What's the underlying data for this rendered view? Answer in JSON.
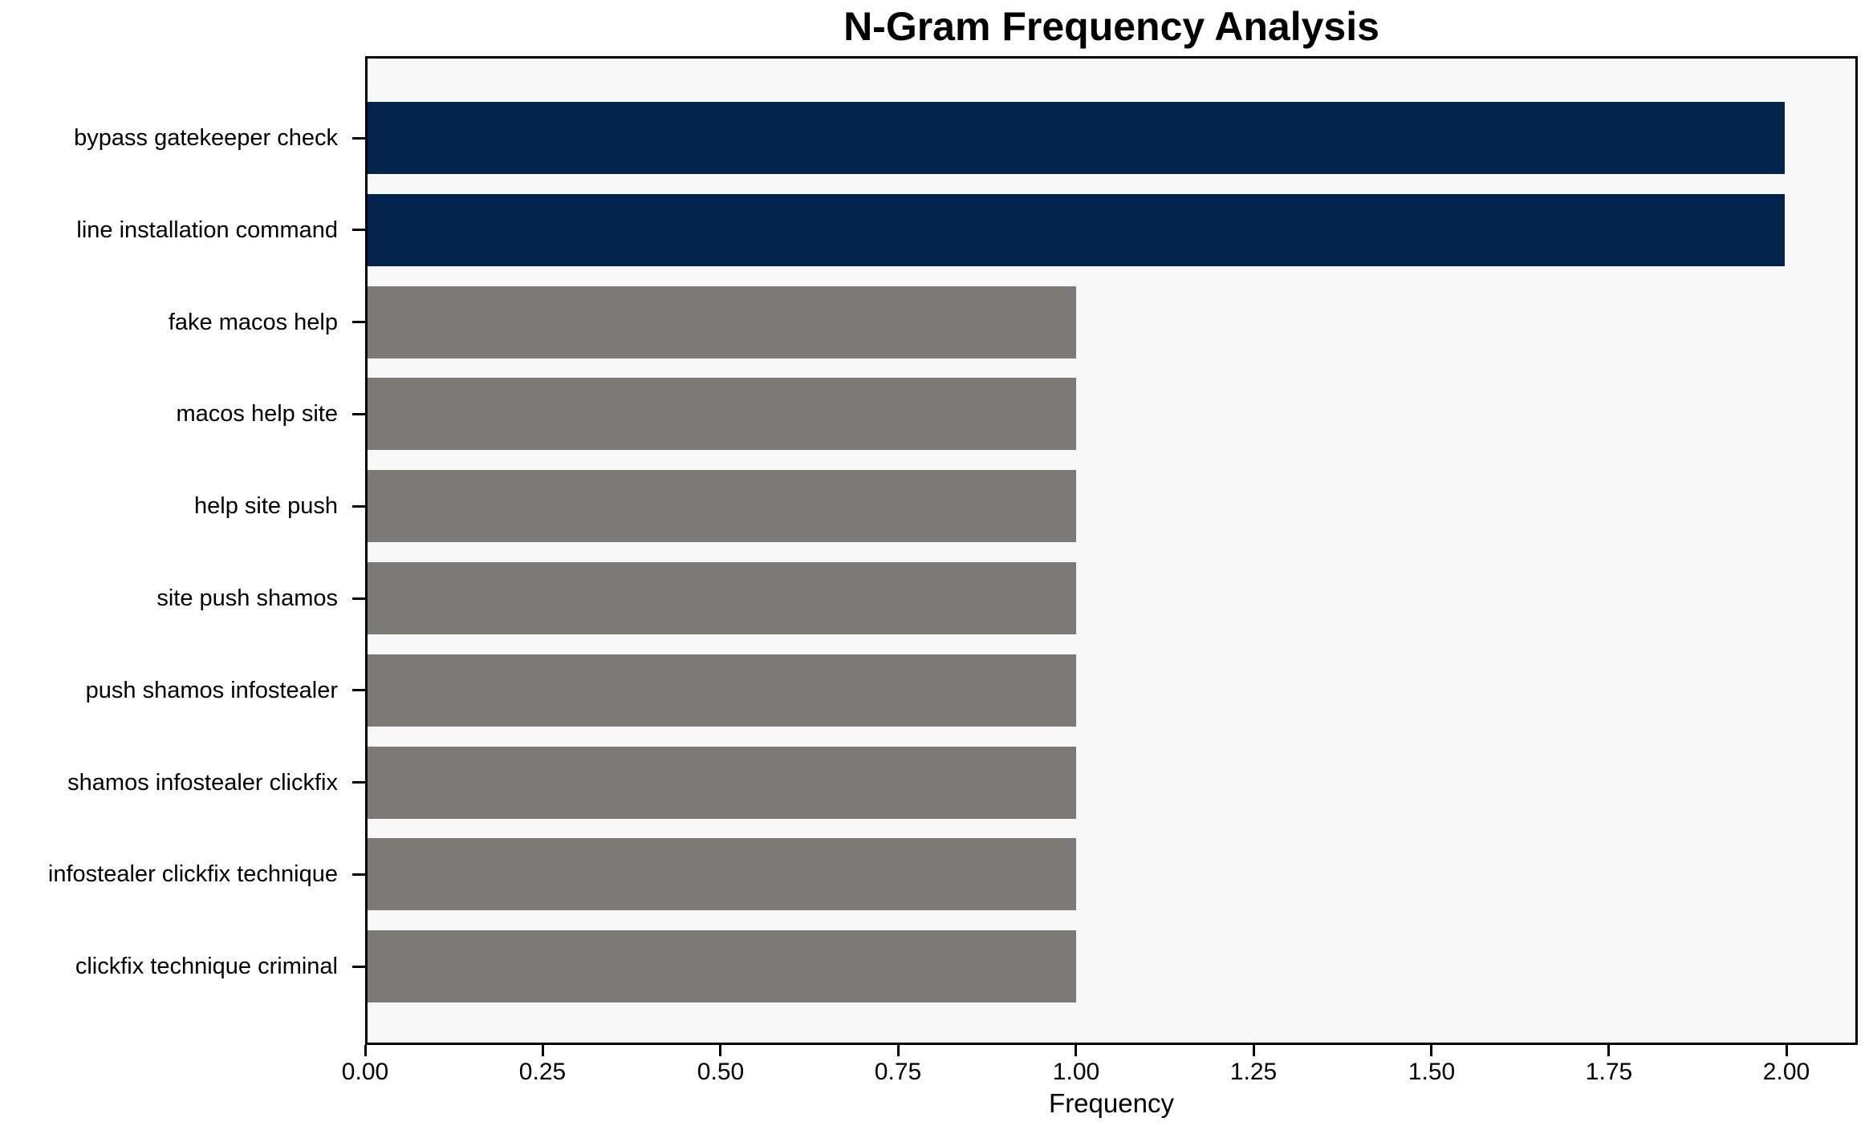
{
  "title": "N-Gram Frequency Analysis",
  "chart_data": {
    "type": "bar",
    "orientation": "horizontal",
    "title": "N-Gram Frequency Analysis",
    "xlabel": "Frequency",
    "ylabel": "",
    "categories": [
      "bypass gatekeeper check",
      "line installation command",
      "fake macos help",
      "macos help site",
      "help site push",
      "site push shamos",
      "push shamos infostealer",
      "shamos infostealer clickfix",
      "infostealer clickfix technique",
      "clickfix technique criminal"
    ],
    "values": [
      2,
      2,
      1,
      1,
      1,
      1,
      1,
      1,
      1,
      1
    ],
    "bar_colors": [
      "#02244c",
      "#02244c",
      "#7b7a76",
      "#7b7a76",
      "#7b7a76",
      "#7b7a76",
      "#7b7a76",
      "#7b7a76",
      "#7b7a76",
      "#7b7a76"
    ],
    "xlim": [
      0,
      2.1
    ],
    "xticks": [
      "0.00",
      "0.25",
      "0.50",
      "0.75",
      "1.00",
      "1.25",
      "1.50",
      "1.75",
      "2.00"
    ],
    "xtick_values": [
      0,
      0.25,
      0.5,
      0.75,
      1.0,
      1.25,
      1.5,
      1.75,
      2.0
    ],
    "grid": false,
    "legend": null,
    "colors": {
      "highlight_bar": "#02244c",
      "default_bar": "#7b7a76",
      "plot_background": "#f8f8f8",
      "figure_background": "#ffffff",
      "axis": "#000000",
      "text": "#000000"
    }
  }
}
